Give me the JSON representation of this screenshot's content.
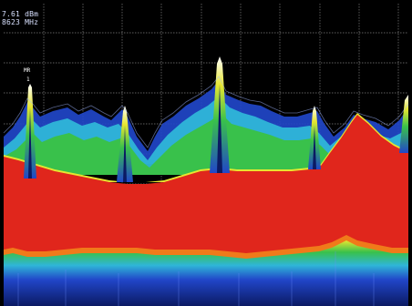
{
  "readout": {
    "line1": "7.61 dBm",
    "line2": "8623 MHz"
  },
  "marker": {
    "label": "MR",
    "number": "1"
  },
  "colors": {
    "background": "#000000",
    "grid": "#a8a8a8",
    "red": "#e0261c",
    "orange": "#f07a1a",
    "yellow": "#e6e630",
    "green": "#39c14b",
    "cyan": "#2fb6d8",
    "blue": "#2146c9",
    "dark_blue": "#0b1a63"
  }
}
